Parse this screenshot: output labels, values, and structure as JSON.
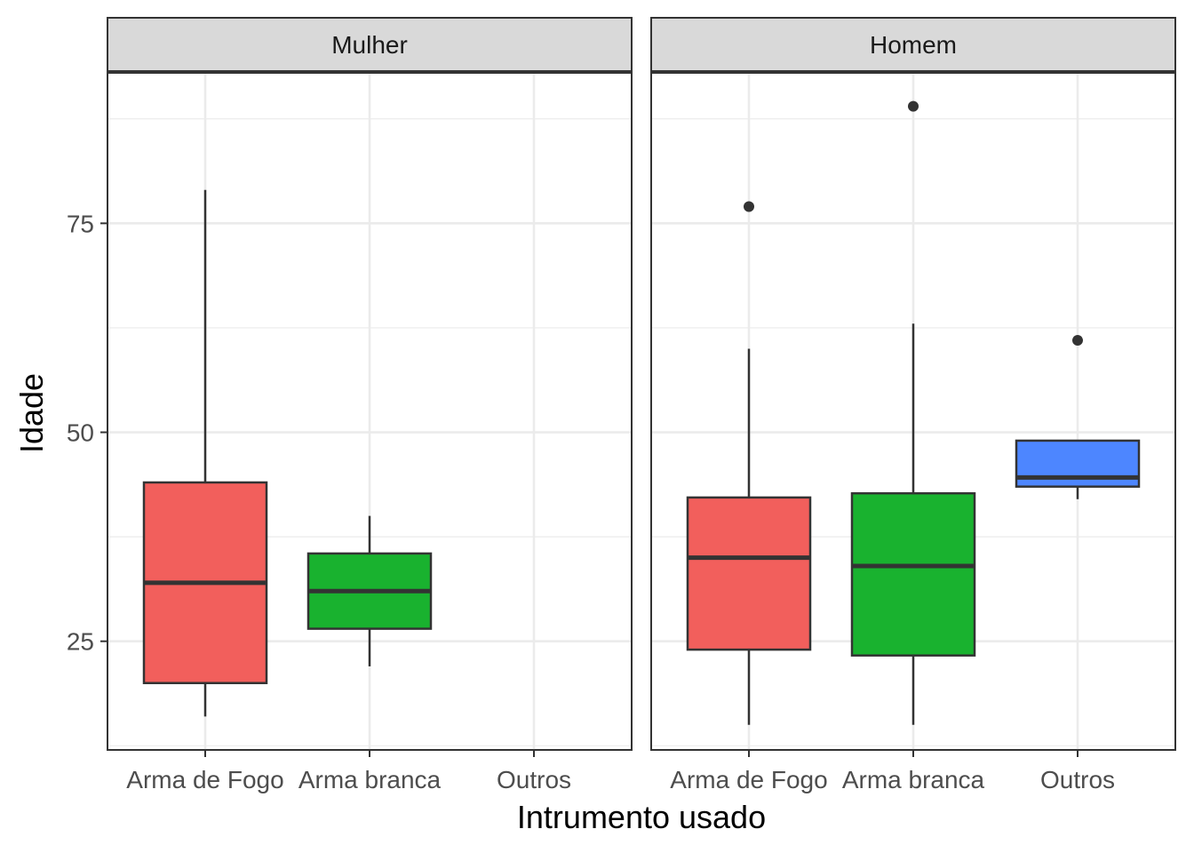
{
  "chart_data": {
    "type": "boxplot",
    "xlabel": "Intrumento usado",
    "ylabel": "Idade",
    "ylim": [
      12,
      93
    ],
    "y_ticks": [
      25,
      50,
      75
    ],
    "y_minor_ticks": [
      12.5,
      37.5,
      62.5,
      87.5
    ],
    "categories": [
      "Arma de Fogo",
      "Arma branca",
      "Outros"
    ],
    "colors": {
      "Arma de Fogo": "#F25F5C",
      "Arma branca": "#19B22F",
      "Outros": "#4D86FF"
    },
    "panels": [
      {
        "title": "Mulher",
        "boxes": [
          {
            "category": "Arma de Fogo",
            "lower_whisker": 16,
            "q1": 20,
            "median": 32,
            "q3": 44,
            "upper_whisker": 79,
            "outliers": []
          },
          {
            "category": "Arma branca",
            "lower_whisker": 22,
            "q1": 26.5,
            "median": 31,
            "q3": 35.5,
            "upper_whisker": 40,
            "outliers": []
          }
        ]
      },
      {
        "title": "Homem",
        "boxes": [
          {
            "category": "Arma de Fogo",
            "lower_whisker": 15,
            "q1": 24,
            "median": 35,
            "q3": 42.2,
            "upper_whisker": 60,
            "outliers": [
              77
            ]
          },
          {
            "category": "Arma branca",
            "lower_whisker": 15,
            "q1": 23.3,
            "median": 34,
            "q3": 42.7,
            "upper_whisker": 63,
            "outliers": [
              89
            ]
          },
          {
            "category": "Outros",
            "lower_whisker": 42,
            "q1": 43.5,
            "median": 44.6,
            "q3": 49,
            "upper_whisker": 49,
            "outliers": [
              61
            ]
          }
        ]
      }
    ]
  }
}
